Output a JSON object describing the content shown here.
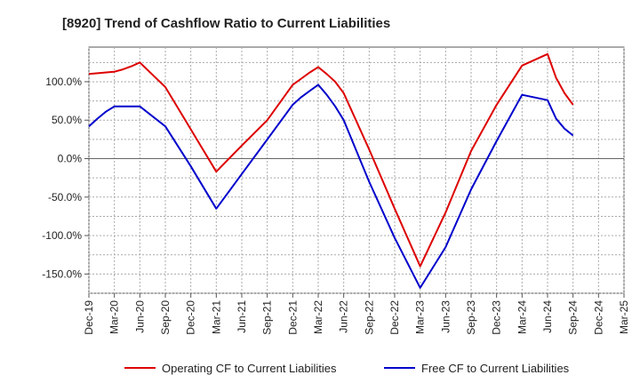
{
  "chart_data": {
    "type": "line",
    "title": "[8920]  Trend of Cashflow Ratio to Current Liabilities",
    "xlabel": "",
    "ylabel": "",
    "x_ticks": [
      "Dec-19",
      "Mar-20",
      "Jun-20",
      "Sep-20",
      "Dec-20",
      "Mar-21",
      "Jun-21",
      "Sep-21",
      "Dec-21",
      "Mar-22",
      "Jun-22",
      "Sep-22",
      "Dec-22",
      "Mar-23",
      "Jun-23",
      "Sep-23",
      "Dec-23",
      "Mar-24",
      "Jun-24",
      "Sep-24",
      "Dec-24",
      "Mar-25"
    ],
    "y_ticks": [
      100,
      50,
      0,
      -50,
      -100,
      -150
    ],
    "y_tick_labels": [
      "100.0%",
      "50.0%",
      "0.0%",
      "-50.0%",
      "-100.0%",
      "-150.0%"
    ],
    "ylim": [
      -175,
      145
    ],
    "grid": true,
    "legend_position": "bottom",
    "series": [
      {
        "name": "Operating CF to Current Liabilities",
        "color": "#dd0000",
        "points": [
          [
            "Dec-19",
            110
          ],
          [
            "Mar-20",
            113
          ],
          [
            "Apr-20",
            116
          ],
          [
            "May-20",
            120
          ],
          [
            "Jun-20",
            125
          ],
          [
            "Sep-20",
            93
          ],
          [
            "Dec-20",
            38
          ],
          [
            "Mar-21",
            -17
          ],
          [
            "Jun-21",
            17
          ],
          [
            "Sep-21",
            50
          ],
          [
            "Dec-21",
            96
          ],
          [
            "Jan-22",
            104
          ],
          [
            "Feb-22",
            112
          ],
          [
            "Mar-22",
            119
          ],
          [
            "Apr-22",
            110
          ],
          [
            "May-22",
            100
          ],
          [
            "Jun-22",
            85
          ],
          [
            "Sep-22",
            12
          ],
          [
            "Dec-22",
            -65
          ],
          [
            "Mar-23",
            -140
          ],
          [
            "Jun-23",
            -70
          ],
          [
            "Sep-23",
            10
          ],
          [
            "Dec-23",
            70
          ],
          [
            "Mar-24",
            121
          ],
          [
            "Jun-24",
            136
          ],
          [
            "Jul-24",
            105
          ],
          [
            "Aug-24",
            85
          ],
          [
            "Sep-24",
            70
          ]
        ]
      },
      {
        "name": "Free CF to Current Liabilities",
        "color": "#0000cc",
        "points": [
          [
            "Dec-19",
            42
          ],
          [
            "Jan-20",
            52
          ],
          [
            "Feb-20",
            61
          ],
          [
            "Mar-20",
            68
          ],
          [
            "Jun-20",
            68
          ],
          [
            "Sep-20",
            42
          ],
          [
            "Dec-20",
            -10
          ],
          [
            "Mar-21",
            -65
          ],
          [
            "Jun-21",
            -20
          ],
          [
            "Sep-21",
            25
          ],
          [
            "Dec-21",
            70
          ],
          [
            "Jan-22",
            80
          ],
          [
            "Feb-22",
            88
          ],
          [
            "Mar-22",
            96
          ],
          [
            "Apr-22",
            83
          ],
          [
            "May-22",
            68
          ],
          [
            "Jun-22",
            50
          ],
          [
            "Sep-22",
            -30
          ],
          [
            "Dec-22",
            -103
          ],
          [
            "Mar-23",
            -168
          ],
          [
            "Jun-23",
            -115
          ],
          [
            "Sep-23",
            -40
          ],
          [
            "Dec-23",
            23
          ],
          [
            "Mar-24",
            83
          ],
          [
            "Jun-24",
            76
          ],
          [
            "Jul-24",
            52
          ],
          [
            "Aug-24",
            39
          ],
          [
            "Sep-24",
            30
          ]
        ]
      }
    ]
  }
}
